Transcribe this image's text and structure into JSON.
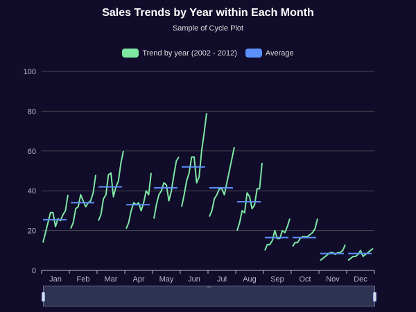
{
  "chart_data": {
    "type": "line",
    "title": "Sales Trends by Year within Each Month",
    "subtitle": "Sample of Cycle Plot",
    "legend": [
      {
        "name": "Trend by year (2002 - 2012)",
        "color": "#7ee8a2"
      },
      {
        "name": "Average",
        "color": "#5b8ff9"
      }
    ],
    "legend_position": "top-center",
    "ylim": [
      0,
      100
    ],
    "y_ticks": [
      "0",
      "20",
      "40",
      "60",
      "80",
      "100"
    ],
    "categories": [
      "Jan",
      "Feb",
      "Mar",
      "Apr",
      "May",
      "Jun",
      "Jul",
      "Aug",
      "Sep",
      "Oct",
      "Nov",
      "Dec"
    ],
    "grid": true,
    "series": [
      {
        "name": "Trend by year (2002 - 2012)",
        "months": [
          [
            14,
            19,
            24,
            29,
            29,
            22,
            26,
            25,
            28,
            30,
            38
          ],
          [
            21,
            24,
            31,
            32,
            38,
            35,
            32,
            34,
            35,
            39,
            48
          ],
          [
            25,
            28,
            36,
            38,
            48,
            49,
            37,
            42,
            45,
            54,
            60
          ],
          [
            21,
            24,
            30,
            34,
            33,
            34,
            30,
            34,
            40,
            38,
            49
          ],
          [
            26,
            33,
            38,
            40,
            44,
            43,
            35,
            40,
            48,
            55,
            57
          ],
          [
            32,
            38,
            45,
            49,
            57,
            57,
            44,
            47,
            60,
            69,
            79
          ],
          [
            27,
            30,
            36,
            38,
            41,
            41,
            38,
            44,
            50,
            56,
            62
          ],
          [
            20,
            24,
            30,
            29,
            39,
            37,
            31,
            33,
            41,
            41,
            54
          ],
          [
            10,
            13,
            13,
            15,
            20,
            16,
            16,
            20,
            19,
            22,
            26
          ],
          [
            12,
            14,
            14,
            16,
            17,
            17,
            17,
            18,
            19,
            21,
            26
          ],
          [
            5,
            6,
            7,
            8,
            9,
            9,
            8,
            9,
            9,
            10,
            13
          ],
          [
            5,
            6,
            7,
            7,
            8,
            10,
            7,
            8,
            9,
            10,
            11
          ]
        ]
      },
      {
        "name": "Average",
        "values": [
          25.5,
          34,
          42,
          33,
          41.5,
          52,
          41.5,
          34.5,
          16.5,
          16.5,
          8.5,
          8.5
        ]
      }
    ],
    "zoom_slider": {
      "start_percent": 0,
      "end_percent": 100
    }
  },
  "colors": {
    "background": "#100c2a",
    "trend": "#7ee8a2",
    "average": "#5b8ff9",
    "grid": "#484753",
    "axis": "#b9b8ce"
  }
}
